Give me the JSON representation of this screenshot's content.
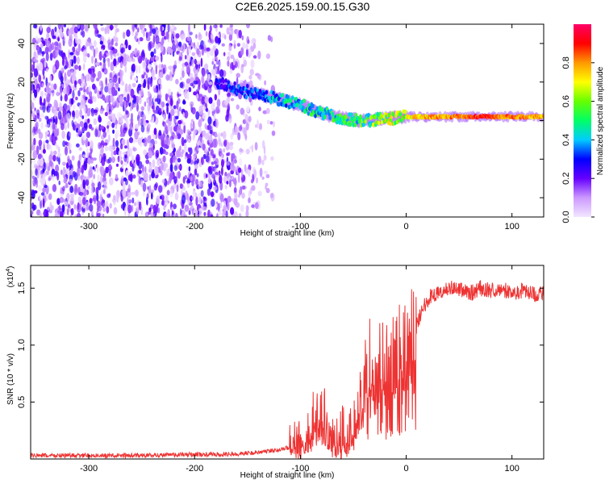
{
  "title": "C2E6.2025.159.00.15.G30",
  "chart_data": [
    {
      "type": "heatmap",
      "xlabel": "Height of straight line (km)",
      "ylabel": "Frequency (Hz)",
      "xlim": [
        -355,
        130
      ],
      "ylim": [
        -50,
        50
      ],
      "xticks": [
        -300,
        -200,
        -100,
        0,
        100
      ],
      "yticks": [
        -40,
        -20,
        0,
        20,
        40
      ],
      "colorbar": {
        "label": "Normalized spectral amplitude",
        "range": [
          0.0,
          1.0
        ],
        "ticks": [
          0.0,
          0.2,
          0.4,
          0.6,
          0.8
        ],
        "colormap": [
          "#f2e6ff",
          "#cc99ff",
          "#6600ff",
          "#0000ff",
          "#00ccff",
          "#00ff66",
          "#66ff00",
          "#ffff00",
          "#ff9900",
          "#ff0000",
          "#ff0066"
        ]
      },
      "ridge": {
        "x": [
          -180,
          -160,
          -140,
          -120,
          -100,
          -80,
          -60,
          -40,
          -20,
          0,
          20,
          50,
          70,
          100,
          130
        ],
        "freq": [
          20,
          16,
          14,
          11,
          8,
          4,
          1,
          0,
          1,
          2,
          2,
          2,
          2,
          2,
          2
        ],
        "amplitude": [
          0.3,
          0.35,
          0.4,
          0.45,
          0.5,
          0.55,
          0.55,
          0.6,
          0.7,
          0.75,
          0.8,
          0.85,
          0.95,
          0.85,
          0.8
        ]
      }
    },
    {
      "type": "line",
      "xlabel": "Height of straight line (km)",
      "ylabel": "SNR (10 * v/v)",
      "yscale_label": "(x10",
      "yscale_exp": "4",
      "xlim": [
        -355,
        130
      ],
      "ylim": [
        0,
        1.7
      ],
      "xticks": [
        -300,
        -200,
        -100,
        0,
        100
      ],
      "yticks": [
        0.5,
        1.0,
        1.5
      ],
      "color": "#ee3333",
      "series": [
        {
          "x": [
            -355,
            -300,
            -250,
            -200,
            -170,
            -150,
            -130,
            -110,
            -100,
            -95,
            -90,
            -85,
            -80,
            -75,
            -70,
            -65,
            -60,
            -55,
            -50,
            -45,
            -40,
            -35,
            -30,
            -25,
            -20,
            -15,
            -10,
            -5,
            0,
            5,
            10,
            15,
            20,
            25,
            30,
            40,
            50,
            60,
            70,
            80,
            90,
            100,
            110,
            120,
            130
          ],
          "values": [
            0.03,
            0.03,
            0.03,
            0.04,
            0.04,
            0.05,
            0.07,
            0.1,
            0.14,
            0.2,
            0.3,
            0.45,
            0.45,
            0.3,
            0.2,
            0.15,
            0.25,
            0.15,
            0.3,
            0.5,
            0.7,
            0.9,
            0.8,
            0.9,
            0.8,
            0.85,
            0.9,
            1.0,
            0.95,
            1.1,
            1.2,
            1.3,
            1.4,
            1.45,
            1.45,
            1.5,
            1.5,
            1.45,
            1.5,
            1.48,
            1.5,
            1.45,
            1.48,
            1.45,
            1.45
          ]
        }
      ]
    }
  ]
}
